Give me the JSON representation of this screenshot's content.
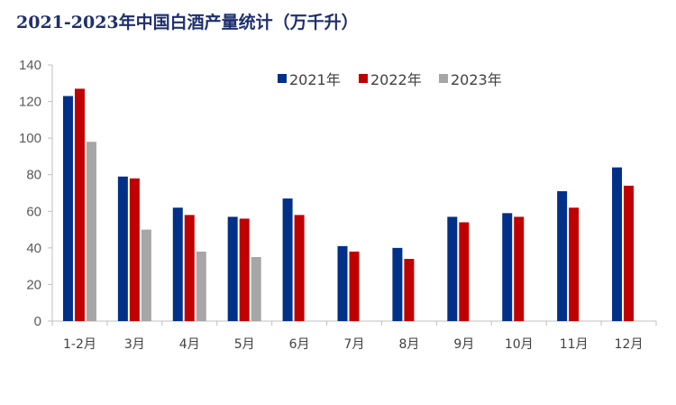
{
  "chart_data": {
    "type": "bar",
    "title": "2021-2023年中国白酒产量统计（万千升）",
    "categories": [
      "1-2月",
      "3月",
      "4月",
      "5月",
      "6月",
      "7月",
      "8月",
      "9月",
      "10月",
      "11月",
      "12月"
    ],
    "series": [
      {
        "name": "2021年",
        "color": "#003087",
        "values": [
          123,
          79,
          62,
          57,
          67,
          41,
          40,
          57,
          59,
          71,
          84
        ]
      },
      {
        "name": "2022年",
        "color": "#c00000",
        "values": [
          127,
          78,
          58,
          56,
          58,
          38,
          34,
          54,
          57,
          62,
          74
        ]
      },
      {
        "name": "2023年",
        "color": "#a6a6a6",
        "values": [
          98,
          50,
          38,
          35,
          null,
          null,
          null,
          null,
          null,
          null,
          null
        ]
      }
    ],
    "yticks": [
      0,
      20,
      40,
      60,
      80,
      100,
      120,
      140
    ],
    "ylim": [
      0,
      140
    ],
    "grid": false,
    "legend_position": "top-center"
  }
}
